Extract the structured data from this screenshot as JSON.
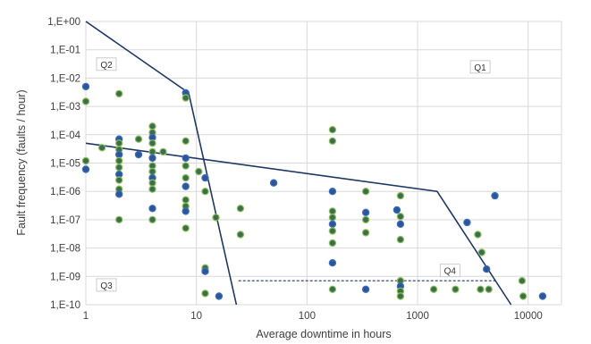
{
  "chart_data": {
    "type": "scatter",
    "title": "",
    "xlabel": "Average downtime in hours",
    "ylabel": "Fault frequency (faults / hour)",
    "x_scale": "log",
    "y_scale": "log",
    "xlim": [
      1,
      20000
    ],
    "ylim": [
      1e-10,
      1
    ],
    "grid": true,
    "legend": "none",
    "x_ticks": [
      {
        "value": 1,
        "label": "1"
      },
      {
        "value": 10,
        "label": "10"
      },
      {
        "value": 100,
        "label": "100"
      },
      {
        "value": 1000,
        "label": "1000"
      },
      {
        "value": 10000,
        "label": "10000"
      }
    ],
    "y_ticks": [
      {
        "value": 1,
        "label": "1,E+00"
      },
      {
        "value": 0.1,
        "label": "1,E-01"
      },
      {
        "value": 0.01,
        "label": "1,E-02"
      },
      {
        "value": 0.001,
        "label": "1,E-03"
      },
      {
        "value": 0.0001,
        "label": "1,E-04"
      },
      {
        "value": 1e-05,
        "label": "1,E-05"
      },
      {
        "value": 1e-06,
        "label": "1,E-06"
      },
      {
        "value": 1e-07,
        "label": "1,E-07"
      },
      {
        "value": 1e-08,
        "label": "1,E-08"
      },
      {
        "value": 1e-09,
        "label": "1,E-09"
      },
      {
        "value": 1e-10,
        "label": "1,E-10"
      }
    ],
    "quadrant_labels": [
      {
        "text": "Q1",
        "x": 3000,
        "y": 0.02
      },
      {
        "text": "Q2",
        "x": 1.25,
        "y": 0.025
      },
      {
        "text": "Q3",
        "x": 1.25,
        "y": 4e-10
      },
      {
        "text": "Q4",
        "x": 1600,
        "y": 1.3e-09
      }
    ],
    "lines": [
      {
        "name": "",
        "style": "solid",
        "points": [
          [
            1,
            1
          ],
          [
            8.5,
            0.003
          ],
          [
            23,
            1e-10
          ]
        ]
      },
      {
        "name": "",
        "style": "solid",
        "points": [
          [
            1,
            5e-05
          ],
          [
            1500,
            1e-06
          ],
          [
            7000,
            1e-10
          ]
        ]
      },
      {
        "name": "",
        "style": "dashed",
        "points": [
          [
            24,
            7e-10
          ],
          [
            5000,
            7e-10
          ]
        ]
      }
    ],
    "series": [
      {
        "name": "",
        "points": [
          [
            1,
            0.005
          ],
          [
            1,
            0.0015
          ],
          [
            1,
            1.2e-05
          ],
          [
            1,
            6e-06
          ],
          [
            1.4,
            3.5e-05
          ],
          [
            2,
            0.0028
          ],
          [
            2,
            7e-05
          ],
          [
            2,
            5e-05
          ],
          [
            2,
            3e-05
          ],
          [
            2,
            2e-05
          ],
          [
            2,
            1.2e-05
          ],
          [
            2,
            7e-06
          ],
          [
            2,
            4e-06
          ],
          [
            2,
            2.5e-06
          ],
          [
            2,
            1.2e-06
          ],
          [
            2,
            8e-07
          ],
          [
            2,
            1e-07
          ],
          [
            3,
            7e-05
          ],
          [
            3,
            2e-05
          ],
          [
            4,
            0.0002
          ],
          [
            4,
            0.00012
          ],
          [
            4,
            8e-05
          ],
          [
            4,
            5e-05
          ],
          [
            4,
            2.5e-05
          ],
          [
            4,
            1.5e-05
          ],
          [
            4,
            8e-06
          ],
          [
            4,
            5e-06
          ],
          [
            4,
            3e-06
          ],
          [
            4,
            2e-06
          ],
          [
            4,
            1.2e-06
          ],
          [
            4,
            2.5e-07
          ],
          [
            4,
            1e-07
          ],
          [
            5,
            2.5e-05
          ],
          [
            8,
            0.003
          ],
          [
            8,
            0.002
          ],
          [
            8,
            6e-05
          ],
          [
            8,
            1.5e-05
          ],
          [
            8,
            8e-06
          ],
          [
            8,
            3e-06
          ],
          [
            8,
            1.5e-06
          ],
          [
            8,
            5e-07
          ],
          [
            8,
            3e-07
          ],
          [
            8,
            2e-07
          ],
          [
            8,
            5e-08
          ],
          [
            10.5,
            5e-06
          ],
          [
            12,
            3e-06
          ],
          [
            12,
            1e-06
          ],
          [
            12,
            2e-09
          ],
          [
            12,
            1.5e-09
          ],
          [
            12,
            2.5e-10
          ],
          [
            15,
            1.2e-07
          ],
          [
            16,
            2e-10
          ],
          [
            25,
            2.5e-07
          ],
          [
            25,
            3e-08
          ],
          [
            50,
            2e-06
          ],
          [
            170,
            0.00015
          ],
          [
            170,
            6e-05
          ],
          [
            170,
            1e-06
          ],
          [
            170,
            2e-07
          ],
          [
            170,
            1.2e-07
          ],
          [
            170,
            7e-08
          ],
          [
            170,
            4e-08
          ],
          [
            170,
            1.5e-08
          ],
          [
            170,
            3e-09
          ],
          [
            170,
            3.5e-10
          ],
          [
            340,
            1e-06
          ],
          [
            340,
            1.8e-07
          ],
          [
            340,
            1e-07
          ],
          [
            340,
            3.5e-08
          ],
          [
            340,
            3.5e-10
          ],
          [
            700,
            7e-07
          ],
          [
            700,
            1.3e-07
          ],
          [
            700,
            7e-08
          ],
          [
            700,
            2e-08
          ],
          [
            700,
            7e-10
          ],
          [
            700,
            4.5e-10
          ],
          [
            700,
            3e-10
          ],
          [
            700,
            2e-10
          ],
          [
            650,
            2.2e-07
          ],
          [
            1400,
            3.5e-10
          ],
          [
            2200,
            3.5e-10
          ],
          [
            2800,
            8e-08
          ],
          [
            3500,
            3e-08
          ],
          [
            3800,
            7e-09
          ],
          [
            4200,
            1.8e-09
          ],
          [
            3700,
            3.5e-10
          ],
          [
            4400,
            3.5e-10
          ],
          [
            5000,
            7e-07
          ],
          [
            8800,
            7e-10
          ],
          [
            9000,
            2e-10
          ],
          [
            13500,
            2e-10
          ]
        ]
      }
    ]
  }
}
